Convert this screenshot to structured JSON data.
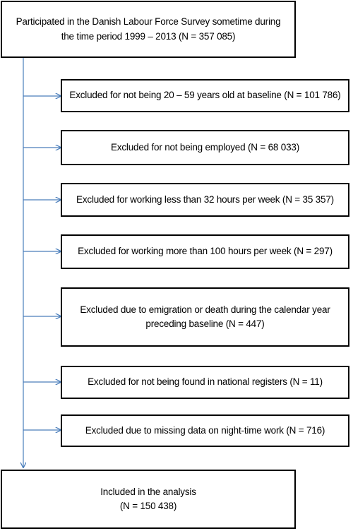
{
  "colors": {
    "arrow": "#4a7ebb",
    "box_border": "#000000",
    "text": "#000000"
  },
  "flowchart": {
    "start": {
      "line1": "Participated in the Danish Labour Force Survey sometime during",
      "line2": "the time period 1999 – 2013 (N = 357 085)"
    },
    "exclusions": [
      {
        "line1": "Excluded for not being 20 – 59 years old at baseline (N = 101 786)",
        "line2": ""
      },
      {
        "line1": "Excluded for not being employed (N = 68 033)",
        "line2": ""
      },
      {
        "line1": "Excluded for working less than 32 hours per week (N = 35 357)",
        "line2": ""
      },
      {
        "line1": "Excluded for working more than 100 hours per week (N = 297)",
        "line2": ""
      },
      {
        "line1": "Excluded due to emigration or death during the calendar year",
        "line2": "preceding baseline (N = 447)"
      },
      {
        "line1": "Excluded for not being found in national registers (N = 11)",
        "line2": ""
      },
      {
        "line1": "Excluded due to missing data on night-time work (N = 716)",
        "line2": ""
      }
    ],
    "end": {
      "line1": "Included in the analysis",
      "line2": "(N = 150 438)"
    }
  }
}
